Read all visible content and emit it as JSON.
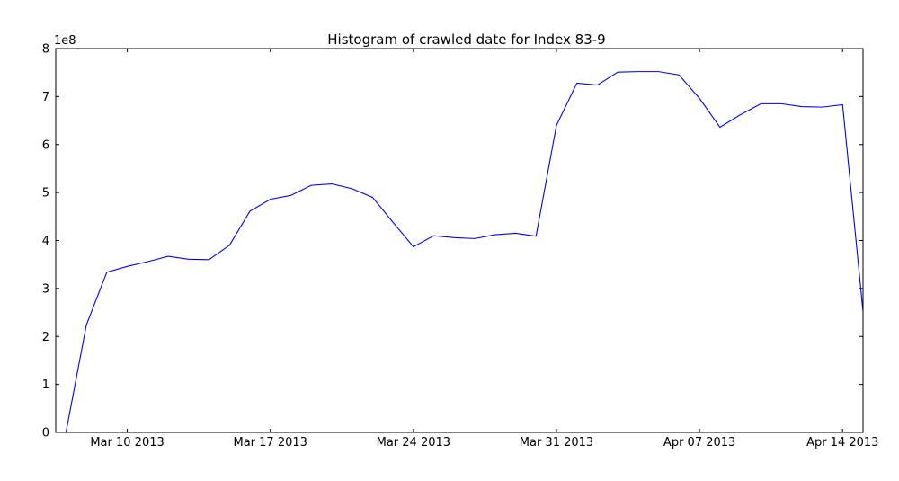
{
  "chart_data": {
    "type": "line",
    "title": "Histogram of crawled date for Index 83-9",
    "xlabel": "",
    "ylabel": "",
    "y_offset_label": "1e8",
    "x_tick_labels": [
      "Mar 10 2013",
      "Mar 17 2013",
      "Mar 24 2013",
      "Mar 31 2013",
      "Apr 07 2013",
      "Apr 14 2013"
    ],
    "x_tick_dates": [
      "2013-03-10",
      "2013-03-17",
      "2013-03-24",
      "2013-03-31",
      "2013-04-07",
      "2013-04-14"
    ],
    "xlim": [
      "2013-03-06 12:00",
      "2013-04-15"
    ],
    "y_tick_labels": [
      "0",
      "1",
      "2",
      "3",
      "4",
      "5",
      "6",
      "7",
      "8"
    ],
    "ylim": [
      0,
      8
    ],
    "grid": false,
    "line_color": "#0000ff",
    "series": [
      {
        "x": [
          "2013-03-07",
          "2013-03-08",
          "2013-03-09",
          "2013-03-10",
          "2013-03-11",
          "2013-03-12",
          "2013-03-13",
          "2013-03-14",
          "2013-03-15",
          "2013-03-16",
          "2013-03-17",
          "2013-03-18",
          "2013-03-19",
          "2013-03-20",
          "2013-03-21",
          "2013-03-22",
          "2013-03-23",
          "2013-03-24",
          "2013-03-25",
          "2013-03-26",
          "2013-03-27",
          "2013-03-28",
          "2013-03-29",
          "2013-03-30",
          "2013-03-31",
          "2013-04-01",
          "2013-04-02",
          "2013-04-03",
          "2013-04-04",
          "2013-04-05",
          "2013-04-06",
          "2013-04-07",
          "2013-04-08",
          "2013-04-09",
          "2013-04-10",
          "2013-04-11",
          "2013-04-12",
          "2013-04-13",
          "2013-04-14",
          "2013-04-15"
        ],
        "values": [
          0,
          2.24,
          3.34,
          3.46,
          3.56,
          3.67,
          3.61,
          3.6,
          3.9,
          4.61,
          4.86,
          4.94,
          5.15,
          5.18,
          5.08,
          4.9,
          4.38,
          3.87,
          4.1,
          4.06,
          4.04,
          4.12,
          4.15,
          4.09,
          6.4,
          7.28,
          7.24,
          7.51,
          7.52,
          7.52,
          7.45,
          6.96,
          6.36,
          6.62,
          6.85,
          6.85,
          6.79,
          6.78,
          6.83,
          2.52
        ]
      }
    ]
  }
}
